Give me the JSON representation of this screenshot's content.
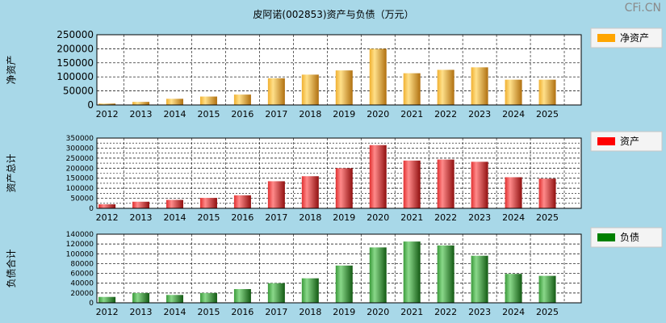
{
  "title": "皮阿诺(002853)资产与负债（万元）",
  "brand": "CFi.CN",
  "chart_data": [
    {
      "type": "bar",
      "ylabel": "净资产",
      "legend": "净资产",
      "legend_color": "#ffa500",
      "colors": {
        "light": "#ffe08a",
        "mid": "#f0b030",
        "dark": "#b07010"
      },
      "ylim": [
        0,
        250000
      ],
      "yticks": [
        0,
        50000,
        100000,
        150000,
        200000,
        250000
      ],
      "categories": [
        "2012",
        "2013",
        "2014",
        "2015",
        "2016",
        "2017",
        "2018",
        "2019",
        "2020",
        "2021",
        "2022",
        "2023",
        "2024",
        "2025"
      ],
      "values": [
        5000,
        11000,
        22000,
        30000,
        37000,
        95000,
        108000,
        123000,
        200000,
        113000,
        125000,
        134000,
        90000,
        90000
      ]
    },
    {
      "type": "bar",
      "ylabel": "资产总计",
      "legend": "资产",
      "legend_color": "#ff0000",
      "colors": {
        "light": "#ff8a8a",
        "mid": "#e03030",
        "dark": "#901010"
      },
      "ylim": [
        0,
        350000
      ],
      "yticks": [
        0,
        50000,
        100000,
        150000,
        200000,
        250000,
        300000,
        350000
      ],
      "minor_step": 25000,
      "categories": [
        "2012",
        "2013",
        "2014",
        "2015",
        "2016",
        "2017",
        "2018",
        "2019",
        "2020",
        "2021",
        "2022",
        "2023",
        "2024",
        "2025"
      ],
      "values": [
        20000,
        33000,
        42000,
        52000,
        65000,
        135000,
        160000,
        200000,
        315000,
        238000,
        243000,
        232000,
        155000,
        148000
      ]
    },
    {
      "type": "bar",
      "ylabel": "负债合计",
      "legend": "负债",
      "legend_color": "#008000",
      "colors": {
        "light": "#8ad88a",
        "mid": "#3a9a3a",
        "dark": "#135a13"
      },
      "ylim": [
        0,
        140000
      ],
      "yticks": [
        0,
        20000,
        40000,
        60000,
        80000,
        100000,
        120000,
        140000
      ],
      "categories": [
        "2012",
        "2013",
        "2014",
        "2015",
        "2016",
        "2017",
        "2018",
        "2019",
        "2020",
        "2021",
        "2022",
        "2023",
        "2024",
        "2025"
      ],
      "values": [
        12000,
        20000,
        16000,
        20000,
        28000,
        40000,
        50000,
        76000,
        113000,
        125000,
        117000,
        96000,
        59000,
        55000
      ]
    }
  ]
}
